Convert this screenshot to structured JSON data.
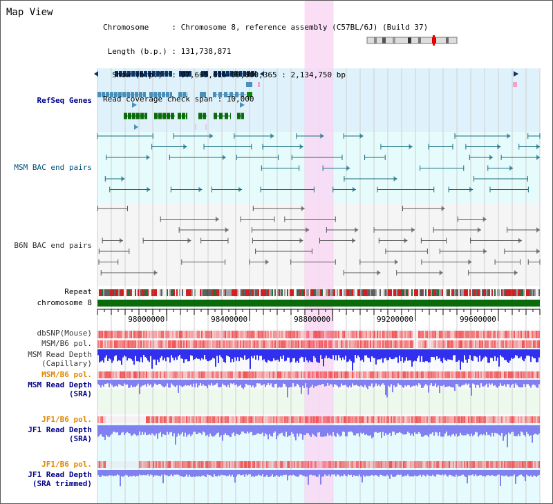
{
  "title": "Map View",
  "info": {
    "lines": [
      "Chromosome     : Chromosome 8, reference assembly (C57BL/6J) (Build 37)",
      " Length (b.p.) : 131,738,871",
      "  Show (b.p.)  : 97,665,616-99,800,365 : 2,134,750 bp",
      "Read coverage check span : 10,000"
    ]
  },
  "region": {
    "start": 97665616,
    "end": 99800365,
    "highlight": [
      98665000,
      98805000
    ]
  },
  "tracks": {
    "refseq": "RefSeq Genes",
    "msm_bac": "MSM BAC end pairs",
    "b6n_bac": "B6N BAC end pairs",
    "repeat": "Repeat",
    "chromosome": "chromosome 8",
    "dbsnp": "dbSNP(Mouse)",
    "msm_b6_pol": "MSM/B6 pol.",
    "msm_depth_cap_1": "MSM Read Depth",
    "msm_depth_cap_2": "(Capillary)",
    "msm_b6_pol2": "MSM/B6 pol.",
    "msm_depth_sra_1": "MSM Read Depth",
    "msm_depth_sra_2": "(SRA)",
    "jf1_b6_pol": "JF1/B6 pol.",
    "jf1_depth_sra_1": "JF1 Read Depth",
    "jf1_depth_sra_2": "(SRA)",
    "jf1_b6_pol2": "JF1/B6 pol.",
    "jf1_depth_trim_1": "JF1 Read Depth",
    "jf1_depth_trim_2": "(SRA trimmed)"
  },
  "axis": {
    "ticks": [
      "98000000",
      "98400000",
      "98800000",
      "99200000",
      "99600000"
    ]
  },
  "colors": {
    "refseq_bg": "#dff2fb",
    "msm_bac_bg": "#e6fbfb",
    "b6n_bg": "#f5f5f5",
    "highlight": "#f8d8f4",
    "gene_dark": "#0b3466",
    "gene_mid": "#4a90b8",
    "gene_green": "#0a6b0a",
    "bac_teal": "#156b80",
    "bac_gray": "#555555",
    "chromosome_bar": "#0a6b0a",
    "depth_blue": "#3030ee",
    "depth_light": "#8080f0",
    "pol_red": "#f04040",
    "label_navy": "#00008b",
    "label_teal": "#00507a",
    "label_orange": "#e08800",
    "label_gray": "#333333"
  }
}
